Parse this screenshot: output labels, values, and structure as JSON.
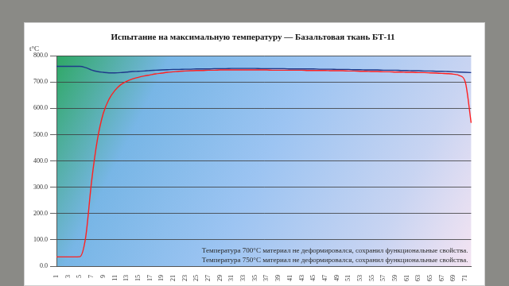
{
  "chart_data": {
    "type": "line",
    "title": "Испытание на максимальную температуру — Базальтовая ткань БТ-11",
    "ylabel": "t°C",
    "annotations": [
      "Температура 700°C материал не деформировался, сохранил функциональные свойства.",
      "Температура 750°C материал не деформировался, сохранил функциональные свойства."
    ],
    "categories": [
      1,
      null,
      3,
      null,
      5,
      null,
      7,
      null,
      9,
      null,
      11,
      null,
      13,
      null,
      15,
      null,
      17,
      null,
      19,
      null,
      21,
      null,
      23,
      null,
      25,
      null,
      27,
      null,
      29,
      null,
      31,
      null,
      33,
      null,
      35,
      null,
      37,
      null,
      39,
      null,
      41,
      null,
      43,
      null,
      45,
      null,
      47,
      null,
      49,
      null,
      51,
      null,
      53,
      null,
      55,
      null,
      57,
      null,
      59,
      null,
      61,
      null,
      63,
      null,
      65,
      null,
      67,
      null,
      69,
      null,
      71,
      null
    ],
    "series": [
      {
        "color": "#1f3a8a",
        "values": [
          760,
          760,
          760,
          760,
          760,
          755,
          746,
          740,
          737,
          735,
          735,
          736,
          738,
          740,
          741,
          742,
          744,
          745,
          746,
          747,
          748,
          748,
          749,
          749,
          750,
          750,
          750,
          751,
          751,
          751,
          752,
          752,
          752,
          752,
          752,
          751,
          751,
          751,
          751,
          751,
          750,
          750,
          750,
          750,
          750,
          749,
          749,
          749,
          748,
          748,
          748,
          747,
          747,
          746,
          746,
          746,
          745,
          745,
          745,
          744,
          744,
          743,
          743,
          742,
          742,
          741,
          741,
          740,
          739,
          738,
          737,
          736
        ]
      },
      {
        "color": "#ff2020",
        "values": [
          35,
          35,
          35,
          35,
          36,
          110,
          320,
          480,
          580,
          635,
          668,
          690,
          703,
          712,
          718,
          723,
          727,
          731,
          734,
          737,
          739,
          741,
          742,
          743,
          744,
          744,
          745,
          745,
          746,
          746,
          746,
          746,
          746,
          746,
          746,
          746,
          746,
          745,
          745,
          745,
          745,
          745,
          745,
          744,
          744,
          744,
          744,
          743,
          743,
          743,
          742,
          742,
          741,
          741,
          740,
          740,
          739,
          739,
          738,
          738,
          737,
          737,
          736,
          736,
          735,
          734,
          733,
          732,
          730,
          725,
          700,
          545
        ]
      }
    ],
    "ylim": [
      0,
      800
    ],
    "yticks": [
      {
        "value": 0,
        "label": "0.0"
      },
      {
        "value": 100,
        "label": "100.0"
      },
      {
        "value": 200,
        "label": "200.0"
      },
      {
        "value": 300,
        "label": "300.0"
      },
      {
        "value": 400,
        "label": "400.0"
      },
      {
        "value": 500,
        "label": "500.0"
      },
      {
        "value": 600,
        "label": "600.0"
      },
      {
        "value": 700,
        "label": "700.0"
      },
      {
        "value": 800,
        "label": "800.0"
      }
    ],
    "grid": true
  }
}
